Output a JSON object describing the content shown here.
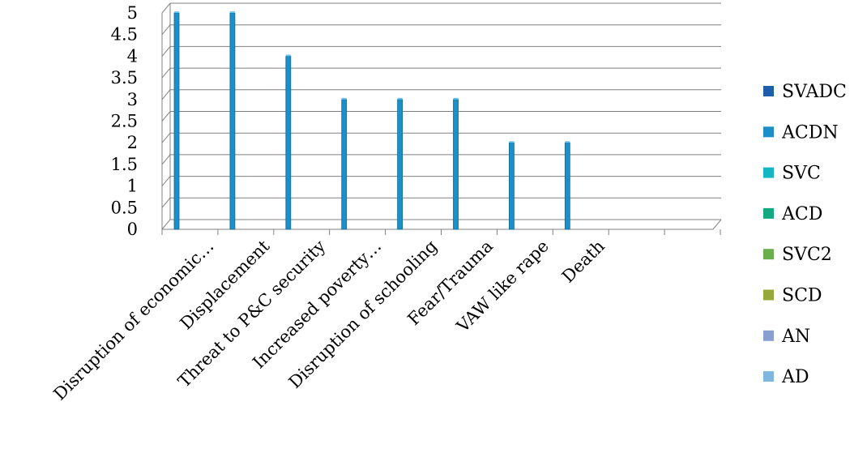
{
  "chart_data": {
    "type": "bar",
    "categories": [
      "Disruption of economic…",
      "Displacement",
      "Threat to P&C security",
      "Increased poverty…",
      "Disruption of schooling",
      "Fear/Trauma",
      "VAW like rape",
      "Death",
      "",
      "",
      ""
    ],
    "series": [
      {
        "name": "SVADC",
        "color": "#1f5faa",
        "values": [
          null,
          null,
          null,
          null,
          null,
          null,
          null,
          null,
          null,
          null,
          null
        ]
      },
      {
        "name": "ACDN",
        "color": "#1c8fc9",
        "values": [
          5,
          5,
          4,
          3,
          3,
          3,
          2,
          2,
          null,
          null,
          null
        ]
      },
      {
        "name": "SVC",
        "color": "#16b5c3",
        "values": [
          null,
          null,
          null,
          null,
          null,
          null,
          null,
          null,
          null,
          null,
          null
        ]
      },
      {
        "name": "ACD",
        "color": "#12a97e",
        "values": [
          null,
          null,
          null,
          null,
          null,
          null,
          null,
          null,
          null,
          null,
          null
        ]
      },
      {
        "name": "SVC2",
        "color": "#6aae4e",
        "values": [
          null,
          null,
          null,
          null,
          null,
          null,
          null,
          null,
          null,
          null,
          null
        ]
      },
      {
        "name": "SCD",
        "color": "#96a83a",
        "values": [
          null,
          null,
          null,
          null,
          null,
          null,
          null,
          null,
          null,
          null,
          null
        ]
      },
      {
        "name": "AN",
        "color": "#8a9fd1",
        "values": [
          null,
          null,
          null,
          null,
          null,
          null,
          null,
          null,
          null,
          null,
          null
        ]
      },
      {
        "name": "AD",
        "color": "#7fb6e0",
        "values": [
          null,
          null,
          null,
          null,
          null,
          null,
          null,
          null,
          null,
          null,
          null
        ]
      }
    ],
    "yticks": [
      "0",
      "0.5",
      "1",
      "1.5",
      "2",
      "2.5",
      "3",
      "3.5",
      "4",
      "4.5",
      "5"
    ],
    "ylim": [
      0,
      5
    ],
    "grid": true,
    "legend_position": "right"
  }
}
